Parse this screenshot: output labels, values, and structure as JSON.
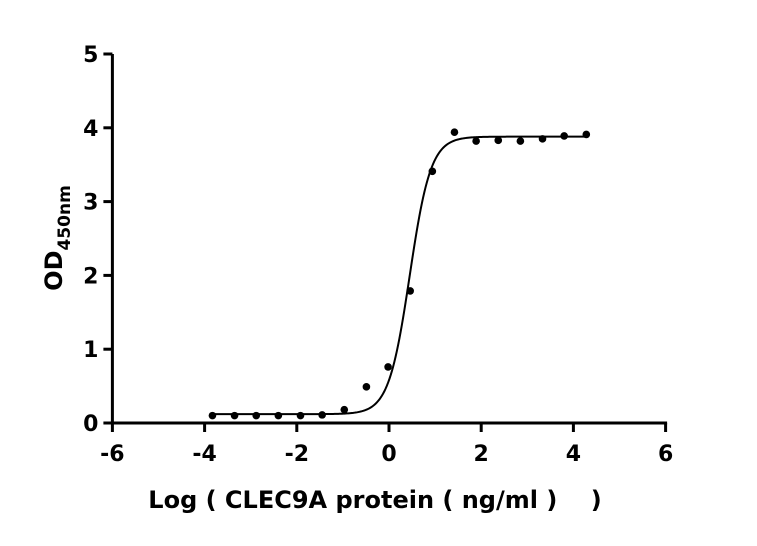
{
  "chart_data": {
    "type": "scatter",
    "title": "",
    "xlabel": "Log ( CLEC9A protein ( ng/ml )    )",
    "ylabel": "OD",
    "ylabel_sub": "450nm",
    "xlim": [
      -6,
      6
    ],
    "ylim": [
      0,
      5
    ],
    "xticks": [
      -6,
      -4,
      -2,
      0,
      2,
      4,
      6
    ],
    "yticks": [
      0,
      1,
      2,
      3,
      4,
      5
    ],
    "grid": false,
    "legend": "none",
    "colors": {
      "points": "#000000",
      "curve": "#000000"
    },
    "series": [
      {
        "x": [
          -3.83,
          -3.35,
          -2.88,
          -2.4,
          -1.92,
          -1.45,
          -0.97,
          -0.49,
          -0.02,
          0.46,
          0.94,
          1.42,
          1.89,
          2.37,
          2.85,
          3.33,
          3.8,
          4.28
        ],
        "y": [
          0.1,
          0.1,
          0.1,
          0.1,
          0.1,
          0.11,
          0.18,
          0.49,
          0.76,
          1.79,
          3.41,
          3.94,
          3.82,
          3.83,
          3.82,
          3.85,
          3.89,
          3.91
        ]
      }
    ],
    "fit": {
      "model": "4PL",
      "bottom": 0.12,
      "top": 3.88,
      "logEC50": 0.45,
      "hill": 1.9
    }
  }
}
